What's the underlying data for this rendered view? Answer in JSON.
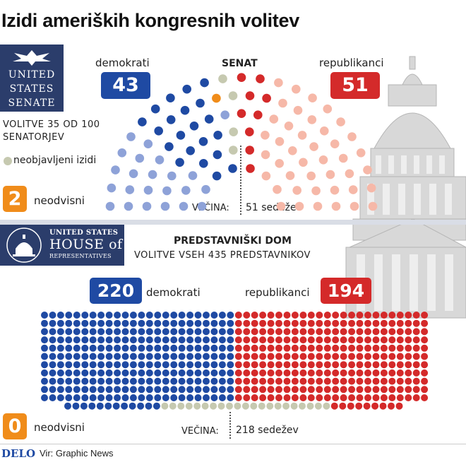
{
  "title": "Izidi ameriških kongresnih volitev",
  "source": {
    "brand": "DELO",
    "credit": "Vir: Graphic News"
  },
  "senate_seal": {
    "line1": "UNITED",
    "line2": "STATES",
    "line3": "SENATE"
  },
  "house_seal": {
    "line1": "UNITED STATES",
    "line2": "HOUSE of",
    "line3": "REPRESENTATIVES"
  },
  "senate_panel": {
    "heading": "SENAT",
    "dem_label": "demokrati",
    "dem_count": "43",
    "rep_label": "republikanci",
    "rep_count": "51",
    "election_line1": "VOLITVE 35 OD 100",
    "election_line2": "SENATORJEV",
    "undeclared_label": "neobjavljeni izidi",
    "independent_count": "2",
    "independent_label": "neodvisni",
    "majority_label": "VEČINA:",
    "majority_value": "51 sedežev"
  },
  "house_panel": {
    "heading": "PREDSTAVNIŠKI DOM",
    "subheading": "VOLITVE VSEH 435 PREDSTAVNIKOV",
    "dem_count": "220",
    "dem_label": "demokrati",
    "rep_label": "republikanci",
    "rep_count": "194",
    "independent_count": "0",
    "independent_label": "neodvisni",
    "majority_label": "VEČINA:",
    "majority_value": "218 sedežev"
  },
  "colors": {
    "dem": "#1f4aa3",
    "dem_light": "#8ea2d8",
    "rep": "#d42a2a",
    "rep_light": "#f6b8a8",
    "undeclared": "#c6c9b0",
    "independent": "#f08c1a",
    "seal": "#2b3d6b"
  },
  "chart_data": [
    {
      "type": "parliament",
      "title": "SENAT",
      "total_seats": 100,
      "majority": 51,
      "series": [
        {
          "name": "demokrati",
          "values": [
            43
          ],
          "up_for_election": 21
        },
        {
          "name": "neodvisni",
          "values": [
            2
          ],
          "up_for_election": 1
        },
        {
          "name": "neobjavljeni izidi",
          "values": [
            4
          ],
          "up_for_election": 4
        },
        {
          "name": "republikanci",
          "values": [
            51
          ],
          "up_for_election": 9
        }
      ]
    },
    {
      "type": "waffle",
      "title": "PREDSTAVNIŠKI DOM",
      "total_seats": 435,
      "majority": 218,
      "series": [
        {
          "name": "demokrati",
          "values": [
            220
          ]
        },
        {
          "name": "neobjavljeni izidi",
          "values": [
            21
          ]
        },
        {
          "name": "republikanci",
          "values": [
            194
          ]
        },
        {
          "name": "neodvisni",
          "values": [
            0
          ]
        }
      ]
    }
  ]
}
